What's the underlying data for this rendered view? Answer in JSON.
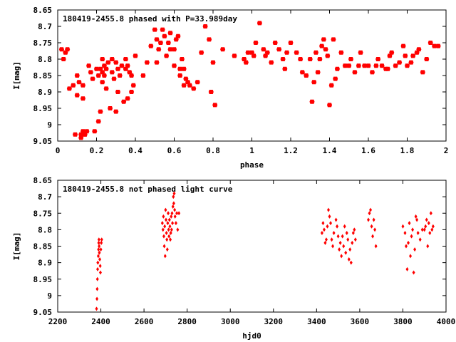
{
  "colors": {
    "points": "#ff0000",
    "frame": "#000000",
    "background": "#ffffff"
  },
  "chart_data": [
    {
      "type": "scatter",
      "title": "180419-2455.8 phased with P=33.989day",
      "xlabel": "phase",
      "ylabel": "I[mag]",
      "xlim": [
        0,
        2
      ],
      "ylim": [
        9.05,
        8.65
      ],
      "y_inverted": true,
      "grid": false,
      "marker": "asterisk",
      "xticks": [
        "0",
        "0.2",
        "0.4",
        "0.6",
        "0.8",
        "1",
        "1.2",
        "1.4",
        "1.6",
        "1.8",
        "2"
      ],
      "yticks": [
        "8.65",
        "8.7",
        "8.75",
        "8.8",
        "8.85",
        "8.9",
        "8.95",
        "9",
        "9.05"
      ],
      "x": [
        -0.01,
        0.02,
        0.03,
        0.04,
        0.05,
        0.06,
        0.08,
        0.09,
        0.1,
        0.1,
        0.11,
        0.12,
        0.12,
        0.13,
        0.13,
        0.13,
        0.14,
        0.14,
        0.15,
        0.16,
        0.17,
        0.18,
        0.19,
        0.2,
        0.21,
        0.21,
        0.22,
        0.22,
        0.23,
        0.23,
        0.23,
        0.24,
        0.24,
        0.25,
        0.25,
        0.26,
        0.27,
        0.28,
        0.28,
        0.29,
        0.3,
        0.3,
        0.31,
        0.31,
        0.32,
        0.33,
        0.34,
        0.35,
        0.35,
        0.36,
        0.36,
        0.37,
        0.38,
        0.38,
        0.39,
        0.4,
        0.44,
        0.46,
        0.48,
        0.5,
        0.51,
        0.51,
        0.52,
        0.53,
        0.54,
        0.55,
        0.56,
        0.57,
        0.58,
        0.58,
        0.6,
        0.6,
        0.61,
        0.62,
        0.63,
        0.63,
        0.64,
        0.65,
        0.65,
        0.66,
        0.67,
        0.68,
        0.7,
        0.72,
        0.74,
        0.76,
        0.78,
        0.79,
        0.8,
        0.81,
        0.85,
        0.91,
        0.96,
        0.97,
        0.98,
        1.0,
        1.01,
        1.02,
        1.04,
        1.06,
        1.07,
        1.08,
        1.1,
        1.12,
        1.14,
        1.16,
        1.17,
        1.18,
        1.2,
        1.23,
        1.25,
        1.26,
        1.28,
        1.3,
        1.31,
        1.32,
        1.33,
        1.34,
        1.35,
        1.36,
        1.37,
        1.38,
        1.39,
        1.4,
        1.41,
        1.42,
        1.43,
        1.44,
        1.46,
        1.48,
        1.5,
        1.51,
        1.53,
        1.55,
        1.56,
        1.58,
        1.6,
        1.62,
        1.64,
        1.65,
        1.67,
        1.69,
        1.7,
        1.71,
        1.72,
        1.74,
        1.76,
        1.78,
        1.79,
        1.8,
        1.82,
        1.83,
        1.85,
        1.86,
        1.88,
        1.9,
        1.92,
        1.94,
        1.96
      ],
      "y": [
        8.78,
        8.77,
        8.8,
        8.78,
        8.77,
        8.89,
        8.88,
        9.03,
        8.85,
        8.91,
        8.87,
        9.04,
        9.03,
        9.02,
        8.92,
        8.88,
        9.03,
        9.03,
        9.02,
        8.82,
        8.84,
        8.86,
        9.02,
        8.83,
        8.85,
        8.99,
        8.83,
        8.96,
        8.84,
        8.87,
        8.8,
        8.82,
        8.85,
        8.83,
        8.89,
        8.81,
        8.95,
        8.84,
        8.8,
        8.86,
        8.96,
        8.81,
        8.83,
        8.9,
        8.85,
        8.82,
        8.93,
        8.83,
        8.8,
        8.92,
        8.82,
        8.84,
        8.85,
        8.9,
        8.88,
        8.79,
        8.85,
        8.81,
        8.76,
        8.71,
        8.74,
        8.81,
        8.77,
        8.75,
        8.71,
        8.73,
        8.79,
        8.75,
        8.72,
        8.77,
        8.77,
        8.82,
        8.74,
        8.73,
        8.83,
        8.85,
        8.8,
        8.88,
        8.83,
        8.86,
        8.87,
        8.88,
        8.89,
        8.87,
        8.78,
        8.7,
        8.74,
        8.9,
        8.81,
        8.94,
        8.77,
        8.79,
        8.8,
        8.81,
        8.78,
        8.78,
        8.79,
        8.75,
        8.69,
        8.77,
        8.79,
        8.78,
        8.81,
        8.75,
        8.77,
        8.8,
        8.83,
        8.78,
        8.75,
        8.78,
        8.8,
        8.84,
        8.85,
        8.8,
        8.93,
        8.87,
        8.78,
        8.84,
        8.8,
        8.76,
        8.74,
        8.77,
        8.79,
        8.94,
        8.88,
        8.74,
        8.86,
        8.83,
        8.78,
        8.82,
        8.82,
        8.8,
        8.84,
        8.82,
        8.78,
        8.82,
        8.82,
        8.84,
        8.82,
        8.8,
        8.82,
        8.83,
        8.83,
        8.79,
        8.78,
        8.82,
        8.81,
        8.76,
        8.79,
        8.82,
        8.81,
        8.79,
        8.78,
        8.77,
        8.84,
        8.8,
        8.75,
        8.76,
        8.76
      ]
    },
    {
      "type": "scatter",
      "title": "180419-2455.8 not phased light curve",
      "xlabel": "hjd0",
      "ylabel": "I[mag]",
      "xlim": [
        2200,
        4000
      ],
      "ylim": [
        9.05,
        8.65
      ],
      "y_inverted": true,
      "grid": false,
      "marker": "diamond",
      "xticks": [
        "2200",
        "2400",
        "2600",
        "2800",
        "3000",
        "3200",
        "3400",
        "3600",
        "3800",
        "4000"
      ],
      "yticks": [
        "8.65",
        "8.7",
        "8.75",
        "8.8",
        "8.85",
        "8.9",
        "8.95",
        "9",
        "9.05"
      ],
      "x": [
        2380,
        2382,
        2383,
        2384,
        2385,
        2386,
        2388,
        2389,
        2390,
        2391,
        2392,
        2393,
        2395,
        2397,
        2398,
        2400,
        2402,
        2404,
        2685,
        2688,
        2690,
        2692,
        2694,
        2696,
        2698,
        2700,
        2702,
        2704,
        2706,
        2708,
        2710,
        2712,
        2714,
        2716,
        2718,
        2720,
        2722,
        2724,
        2726,
        2728,
        2730,
        2732,
        2734,
        2736,
        2738,
        2740,
        2742,
        2744,
        2748,
        2752,
        2756,
        2762,
        3425,
        3430,
        3435,
        3440,
        3445,
        3450,
        3455,
        3460,
        3465,
        3470,
        3475,
        3480,
        3490,
        3495,
        3500,
        3505,
        3510,
        3515,
        3520,
        3525,
        3530,
        3535,
        3540,
        3545,
        3550,
        3555,
        3560,
        3565,
        3570,
        3575,
        3580,
        3640,
        3645,
        3650,
        3655,
        3660,
        3665,
        3670,
        3675,
        3800,
        3810,
        3815,
        3820,
        3825,
        3830,
        3835,
        3840,
        3845,
        3850,
        3855,
        3860,
        3865,
        3870,
        3880,
        3890,
        3900,
        3905,
        3910,
        3915,
        3920,
        3925,
        3930,
        3935,
        3940
      ],
      "y": [
        9.04,
        9.01,
        8.98,
        8.95,
        8.92,
        8.9,
        8.88,
        8.86,
        8.84,
        8.83,
        8.85,
        8.87,
        8.89,
        8.91,
        8.93,
        8.86,
        8.84,
        8.83,
        8.78,
        8.8,
        8.76,
        8.82,
        8.85,
        8.79,
        8.88,
        8.74,
        8.77,
        8.81,
        8.83,
        8.86,
        8.78,
        8.75,
        8.8,
        8.82,
        8.77,
        8.79,
        8.83,
        8.81,
        8.76,
        8.8,
        8.75,
        8.78,
        8.73,
        8.7,
        8.72,
        8.69,
        8.74,
        8.76,
        8.78,
        8.75,
        8.8,
        8.75,
        8.81,
        8.78,
        8.8,
        8.84,
        8.83,
        8.79,
        8.74,
        8.76,
        8.78,
        8.83,
        8.85,
        8.81,
        8.77,
        8.79,
        8.82,
        8.86,
        8.84,
        8.88,
        8.82,
        8.85,
        8.79,
        8.87,
        8.81,
        8.83,
        8.89,
        8.86,
        8.9,
        8.84,
        8.81,
        8.8,
        8.83,
        8.77,
        8.75,
        8.74,
        8.79,
        8.82,
        8.77,
        8.8,
        8.85,
        8.79,
        8.81,
        8.85,
        8.92,
        8.84,
        8.78,
        8.88,
        8.82,
        8.8,
        8.93,
        8.86,
        8.76,
        8.77,
        8.81,
        8.83,
        8.8,
        8.8,
        8.79,
        8.77,
        8.85,
        8.78,
        8.81,
        8.75,
        8.8,
        8.79
      ]
    }
  ]
}
